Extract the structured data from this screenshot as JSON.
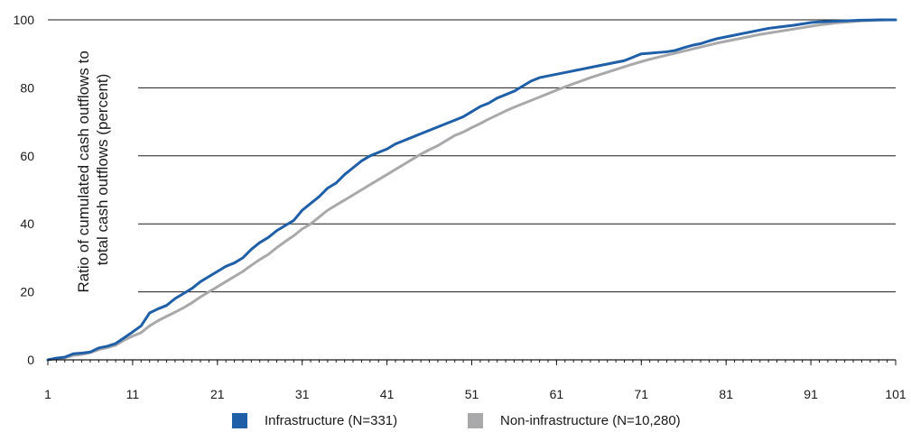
{
  "chart_data": {
    "type": "line",
    "ylabel": "Ratio of cumulated cash outflows to total cash outflows (percent)",
    "ylabel_lines": [
      "Ratio of cumulated cash outflows to",
      "total cash outflows (percent)"
    ],
    "xlabel": "",
    "xlim": [
      1,
      101
    ],
    "ylim": [
      0,
      100
    ],
    "x_ticks": [
      "1",
      "11",
      "21",
      "31",
      "41",
      "51",
      "61",
      "71",
      "81",
      "91",
      "101"
    ],
    "y_ticks": [
      "0",
      "20",
      "40",
      "60",
      "80",
      "100"
    ],
    "grid": "horizontal",
    "legend_position": "bottom",
    "series": [
      {
        "name": "Infrastructure (N=331)",
        "color": "#1f5fa8",
        "x": [
          1,
          2,
          3,
          4,
          5,
          6,
          7,
          8,
          9,
          10,
          11,
          12,
          13,
          14,
          15,
          16,
          17,
          18,
          19,
          20,
          21,
          22,
          23,
          24,
          25,
          26,
          27,
          28,
          29,
          30,
          31,
          32,
          33,
          34,
          35,
          36,
          37,
          38,
          39,
          40,
          41,
          42,
          43,
          44,
          45,
          46,
          47,
          48,
          49,
          50,
          51,
          52,
          53,
          54,
          55,
          56,
          57,
          58,
          59,
          60,
          61,
          62,
          63,
          64,
          65,
          66,
          67,
          68,
          69,
          70,
          71,
          72,
          73,
          74,
          75,
          76,
          77,
          78,
          79,
          80,
          81,
          82,
          83,
          84,
          85,
          86,
          87,
          88,
          89,
          90,
          91,
          92,
          93,
          94,
          95,
          96,
          97,
          98,
          99,
          100,
          101
        ],
        "values": [
          0,
          0.5,
          0.8,
          1.8,
          2.0,
          2.3,
          3.5,
          4.0,
          4.8,
          6.5,
          8.2,
          10,
          13.8,
          15,
          16,
          18,
          19.5,
          21,
          23,
          24.5,
          26,
          27.5,
          28.5,
          30,
          32.5,
          34.5,
          36,
          38,
          39.5,
          41,
          44,
          46,
          48,
          50.5,
          52,
          54.5,
          56.5,
          58.5,
          60,
          61,
          62,
          63.5,
          64.5,
          65.5,
          66.5,
          67.5,
          68.5,
          69.5,
          70.5,
          71.5,
          73,
          74.5,
          75.5,
          77,
          78,
          79,
          80.5,
          82,
          83,
          83.5,
          84,
          84.5,
          85,
          85.5,
          86,
          86.5,
          87,
          87.5,
          88,
          89,
          90,
          90.2,
          90.4,
          90.6,
          91,
          91.8,
          92.5,
          93,
          93.8,
          94.5,
          95,
          95.5,
          96,
          96.5,
          97,
          97.5,
          97.8,
          98.1,
          98.4,
          98.8,
          99.2,
          99.4,
          99.5,
          99.6,
          99.7,
          99.8,
          99.9,
          99.95,
          100,
          100,
          100
        ]
      },
      {
        "name": "Non-infrastructure (N=10,280)",
        "color": "#a9a9ab",
        "x": [
          1,
          2,
          3,
          4,
          5,
          6,
          7,
          8,
          9,
          10,
          11,
          12,
          13,
          14,
          15,
          16,
          17,
          18,
          19,
          20,
          21,
          22,
          23,
          24,
          25,
          26,
          27,
          28,
          29,
          30,
          31,
          32,
          33,
          34,
          35,
          36,
          37,
          38,
          39,
          40,
          41,
          42,
          43,
          44,
          45,
          46,
          47,
          48,
          49,
          50,
          51,
          52,
          53,
          54,
          55,
          56,
          57,
          58,
          59,
          60,
          61,
          62,
          63,
          64,
          65,
          66,
          67,
          68,
          69,
          70,
          71,
          72,
          73,
          74,
          75,
          76,
          77,
          78,
          79,
          80,
          81,
          82,
          83,
          84,
          85,
          86,
          87,
          88,
          89,
          90,
          91,
          92,
          93,
          94,
          95,
          96,
          97,
          98,
          99,
          100,
          101
        ],
        "values": [
          0,
          0.3,
          0.6,
          1.3,
          1.6,
          2.1,
          3.0,
          3.6,
          4.3,
          5.8,
          7.0,
          8.0,
          10,
          11.5,
          12.8,
          14,
          15.3,
          16.8,
          18.5,
          20,
          21.5,
          23,
          24.5,
          26,
          27.8,
          29.5,
          31,
          33,
          34.8,
          36.5,
          38.5,
          40,
          42,
          44,
          45.5,
          47,
          48.5,
          50,
          51.5,
          53,
          54.5,
          56,
          57.5,
          59,
          60.5,
          61.8,
          63,
          64.5,
          66,
          67,
          68.3,
          69.5,
          70.8,
          72,
          73.2,
          74.3,
          75.3,
          76.3,
          77.3,
          78.3,
          79.3,
          80.3,
          81.2,
          82.1,
          83,
          83.8,
          84.6,
          85.4,
          86.2,
          87,
          87.7,
          88.4,
          89,
          89.6,
          90.2,
          90.8,
          91.4,
          92,
          92.6,
          93.2,
          93.7,
          94.2,
          94.7,
          95.2,
          95.7,
          96.1,
          96.5,
          96.9,
          97.3,
          97.7,
          98.1,
          98.5,
          98.8,
          99.1,
          99.3,
          99.5,
          99.7,
          99.8,
          99.9,
          100,
          100
        ]
      }
    ]
  }
}
